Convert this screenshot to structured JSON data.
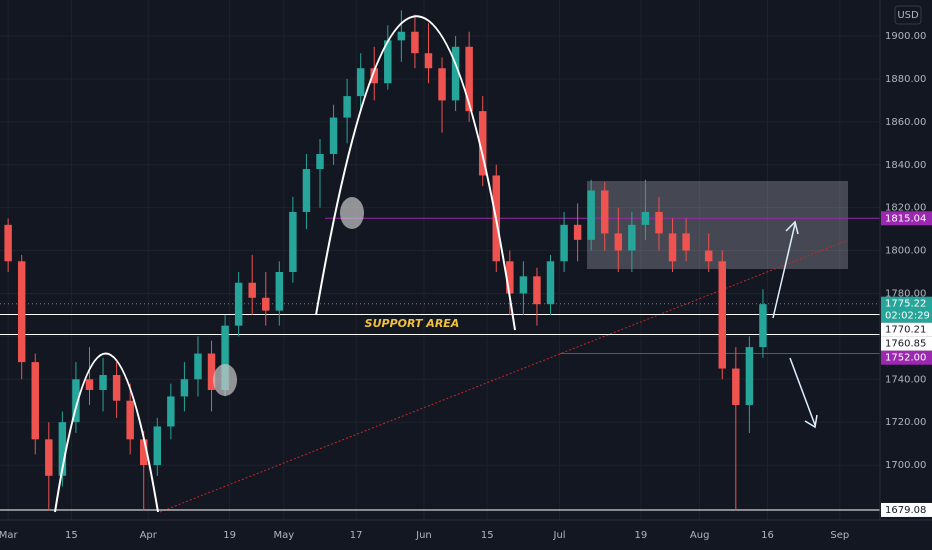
{
  "chart_data": {
    "type": "candlestick",
    "currency": "USD",
    "annotation": "SUPPORT AREA",
    "up_color": "#26a69a",
    "down_color": "#ef5350",
    "x": [
      0,
      3,
      6,
      9,
      12,
      15,
      18,
      21,
      24,
      27,
      30,
      33,
      36,
      39,
      42,
      45,
      48,
      51,
      54,
      57,
      60,
      63,
      66,
      69,
      72,
      75,
      78,
      81,
      84,
      87,
      90,
      93,
      96,
      99,
      102,
      105,
      108,
      111,
      114,
      117,
      120,
      123,
      126,
      129,
      132,
      135,
      138,
      141,
      144,
      147,
      150,
      155,
      158,
      161,
      164,
      167
    ],
    "open": [
      1812,
      1795,
      1748,
      1712,
      1695,
      1720,
      1740,
      1735,
      1742,
      1730,
      1712,
      1700,
      1718,
      1732,
      1740,
      1752,
      1735,
      1765,
      1785,
      1778,
      1772,
      1790,
      1818,
      1838,
      1845,
      1862,
      1872,
      1885,
      1878,
      1898,
      1902,
      1892,
      1885,
      1870,
      1895,
      1865,
      1835,
      1795,
      1780,
      1788,
      1775,
      1795,
      1812,
      1805,
      1828,
      1808,
      1800,
      1812,
      1818,
      1808,
      1808,
      1800,
      1795,
      1745,
      1728,
      1755
    ],
    "high": [
      1815,
      1798,
      1752,
      1720,
      1725,
      1748,
      1755,
      1750,
      1748,
      1738,
      1716,
      1722,
      1738,
      1748,
      1760,
      1758,
      1770,
      1790,
      1798,
      1790,
      1795,
      1825,
      1845,
      1852,
      1868,
      1880,
      1892,
      1895,
      1905,
      1912,
      1910,
      1906,
      1890,
      1900,
      1902,
      1872,
      1840,
      1800,
      1795,
      1792,
      1798,
      1818,
      1822,
      1833,
      1832,
      1820,
      1818,
      1833,
      1825,
      1815,
      1815,
      1808,
      1800,
      1755,
      1760,
      1782
    ],
    "low": [
      1790,
      1740,
      1705,
      1679,
      1690,
      1715,
      1728,
      1725,
      1722,
      1705,
      1679,
      1695,
      1712,
      1725,
      1732,
      1725,
      1732,
      1760,
      1770,
      1765,
      1765,
      1785,
      1810,
      1820,
      1840,
      1850,
      1865,
      1870,
      1875,
      1888,
      1885,
      1878,
      1855,
      1865,
      1860,
      1830,
      1790,
      1770,
      1770,
      1765,
      1770,
      1790,
      1795,
      1800,
      1800,
      1790,
      1790,
      1805,
      1800,
      1790,
      1795,
      1790,
      1740,
      1679,
      1715,
      1750
    ],
    "close": [
      1795,
      1748,
      1712,
      1695,
      1720,
      1740,
      1735,
      1742,
      1730,
      1712,
      1700,
      1718,
      1732,
      1740,
      1752,
      1735,
      1765,
      1785,
      1778,
      1772,
      1790,
      1818,
      1838,
      1845,
      1862,
      1872,
      1885,
      1878,
      1898,
      1902,
      1892,
      1885,
      1870,
      1895,
      1865,
      1835,
      1795,
      1780,
      1788,
      1775,
      1795,
      1812,
      1805,
      1828,
      1808,
      1800,
      1812,
      1818,
      1808,
      1795,
      1800,
      1795,
      1745,
      1728,
      1755,
      1775
    ],
    "xlim": [
      -1.8,
      192.9
    ],
    "xticks": [
      {
        "value": 0,
        "label": "Mar"
      },
      {
        "value": 14,
        "label": "15"
      },
      {
        "value": 31,
        "label": "Apr"
      },
      {
        "value": 49,
        "label": "19"
      },
      {
        "value": 61,
        "label": "May"
      },
      {
        "value": 77,
        "label": "17"
      },
      {
        "value": 92,
        "label": "Jun"
      },
      {
        "value": 106,
        "label": "15"
      },
      {
        "value": 122,
        "label": "Jul"
      },
      {
        "value": 140,
        "label": "19"
      },
      {
        "value": 153,
        "label": "Aug"
      },
      {
        "value": 168,
        "label": "16"
      },
      {
        "value": 184,
        "label": "Sep"
      }
    ],
    "ylim": [
      1674.4,
      1916.8
    ],
    "yticks": [
      {
        "value": 1700,
        "label": "1700.00"
      },
      {
        "value": 1720,
        "label": "1720.00"
      },
      {
        "value": 1740,
        "label": "1740.00"
      },
      {
        "value": 1760,
        "label": "1760.00"
      },
      {
        "value": 1780,
        "label": "1780.00"
      },
      {
        "value": 1800,
        "label": "1800.00"
      },
      {
        "value": 1820,
        "label": "1820.00"
      },
      {
        "value": 1840,
        "label": "1840.00"
      },
      {
        "value": 1860,
        "label": "1860.00"
      },
      {
        "value": 1880,
        "label": "1880.00"
      },
      {
        "value": 1900,
        "label": "1900.00"
      }
    ],
    "grid": true,
    "levels": [
      {
        "value": 1815.04,
        "label": "1815.04",
        "color": "#9c27b0"
      },
      {
        "value": 1775.22,
        "label": "1775.22",
        "color": "#26a69a",
        "countdown": "02:02:29",
        "style": "dotted"
      },
      {
        "value": 1770.21,
        "label": "1770.21",
        "color": "#ffffff"
      },
      {
        "value": 1760.85,
        "label": "1760.85",
        "color": "#ffffff"
      },
      {
        "value": 1752.0,
        "label": "1752.00",
        "color": "#9c27b0"
      },
      {
        "value": 1679.08,
        "label": "1679.08",
        "color": "#ffffff"
      }
    ]
  }
}
